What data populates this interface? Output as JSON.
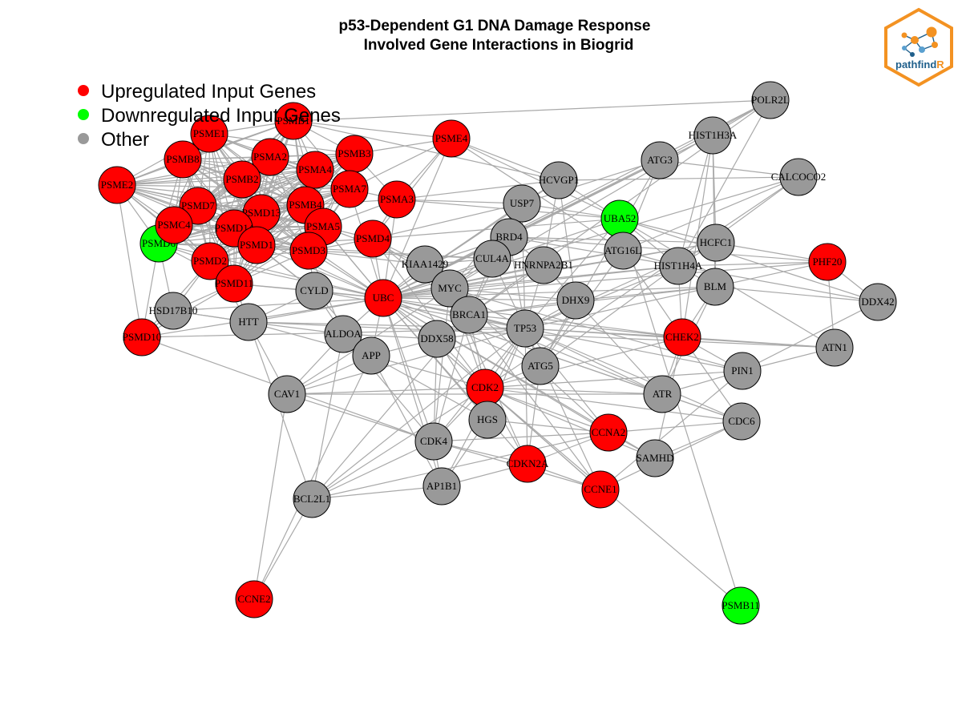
{
  "title": {
    "line1": "p53-Dependent G1 DNA Damage Response",
    "line2": "Involved Gene Interactions in Biogrid"
  },
  "legend": [
    {
      "label": "Upregulated Input Genes",
      "color": "#ff0000"
    },
    {
      "label": "Downregulated Input Genes",
      "color": "#00ff00"
    },
    {
      "label": "Other",
      "color": "#999999"
    }
  ],
  "logo": {
    "text_main": "pathfind",
    "text_accent": "R",
    "border_color": "#f39222",
    "accent_color": "#f39222",
    "main_color": "#1f5f8b"
  },
  "colors": {
    "up": "#ff0000",
    "down": "#00ff00",
    "other": "#999999",
    "edge": "#a9a9a9"
  },
  "nodes": [
    {
      "id": "PSMD6",
      "status": "down"
    },
    {
      "id": "UBA52",
      "status": "down"
    },
    {
      "id": "PSMB11",
      "status": "down"
    },
    {
      "id": "PSME1",
      "status": "up"
    },
    {
      "id": "PSMB1",
      "status": "up"
    },
    {
      "id": "PSME4",
      "status": "up"
    },
    {
      "id": "PSMB8",
      "status": "up"
    },
    {
      "id": "PSMA2",
      "status": "up"
    },
    {
      "id": "PSMB3",
      "status": "up"
    },
    {
      "id": "PSMA4",
      "status": "up"
    },
    {
      "id": "PSME2",
      "status": "up"
    },
    {
      "id": "PSMB2",
      "status": "up"
    },
    {
      "id": "PSMA7",
      "status": "up"
    },
    {
      "id": "PSMA3",
      "status": "up"
    },
    {
      "id": "PSMD7",
      "status": "up"
    },
    {
      "id": "PSMD13",
      "status": "up"
    },
    {
      "id": "PSMB4",
      "status": "up"
    },
    {
      "id": "PSMC4",
      "status": "up"
    },
    {
      "id": "PSMD14",
      "status": "up"
    },
    {
      "id": "PSMA5",
      "status": "up"
    },
    {
      "id": "PSMD1",
      "status": "up"
    },
    {
      "id": "PSMD4",
      "status": "up"
    },
    {
      "id": "PSMD3",
      "status": "up"
    },
    {
      "id": "PSMD2",
      "status": "up"
    },
    {
      "id": "PSMD11",
      "status": "up"
    },
    {
      "id": "PSMD10",
      "status": "up"
    },
    {
      "id": "UBC",
      "status": "up"
    },
    {
      "id": "PHF20",
      "status": "up"
    },
    {
      "id": "CHEK2",
      "status": "up"
    },
    {
      "id": "CDK2",
      "status": "up"
    },
    {
      "id": "CCNA2",
      "status": "up"
    },
    {
      "id": "CDKN2A",
      "status": "up"
    },
    {
      "id": "CCNE1",
      "status": "up"
    },
    {
      "id": "CCNE2",
      "status": "up"
    },
    {
      "id": "POLR2L",
      "status": "other"
    },
    {
      "id": "HIST1H3A",
      "status": "other"
    },
    {
      "id": "ATG3",
      "status": "other"
    },
    {
      "id": "CALCOCO2",
      "status": "other"
    },
    {
      "id": "HCVGP1",
      "status": "other"
    },
    {
      "id": "USP7",
      "status": "other"
    },
    {
      "id": "BRD4",
      "status": "other"
    },
    {
      "id": "ATG16L",
      "status": "other"
    },
    {
      "id": "HCFC1",
      "status": "other"
    },
    {
      "id": "KIAA1429",
      "status": "other"
    },
    {
      "id": "CUL4A",
      "status": "other"
    },
    {
      "id": "HNRNPA2B1",
      "status": "other"
    },
    {
      "id": "HIST1H4A",
      "status": "other"
    },
    {
      "id": "MYC",
      "status": "other"
    },
    {
      "id": "CYLD",
      "status": "other"
    },
    {
      "id": "BLM",
      "status": "other"
    },
    {
      "id": "DDX42",
      "status": "other"
    },
    {
      "id": "HSD17B10",
      "status": "other"
    },
    {
      "id": "BRCA1",
      "status": "other"
    },
    {
      "id": "DHX9",
      "status": "other"
    },
    {
      "id": "HTT",
      "status": "other"
    },
    {
      "id": "ALDOA",
      "status": "other"
    },
    {
      "id": "TP53",
      "status": "other"
    },
    {
      "id": "DDX58",
      "status": "other"
    },
    {
      "id": "APP",
      "status": "other"
    },
    {
      "id": "ATN1",
      "status": "other"
    },
    {
      "id": "ATG5",
      "status": "other"
    },
    {
      "id": "PIN1",
      "status": "other"
    },
    {
      "id": "CAV1",
      "status": "other"
    },
    {
      "id": "ATR",
      "status": "other"
    },
    {
      "id": "HGS",
      "status": "other"
    },
    {
      "id": "CDC6",
      "status": "other"
    },
    {
      "id": "CDK4",
      "status": "other"
    },
    {
      "id": "SAMHD",
      "status": "other"
    },
    {
      "id": "AP1B1",
      "status": "other"
    },
    {
      "id": "BCL2L1",
      "status": "other"
    }
  ]
}
